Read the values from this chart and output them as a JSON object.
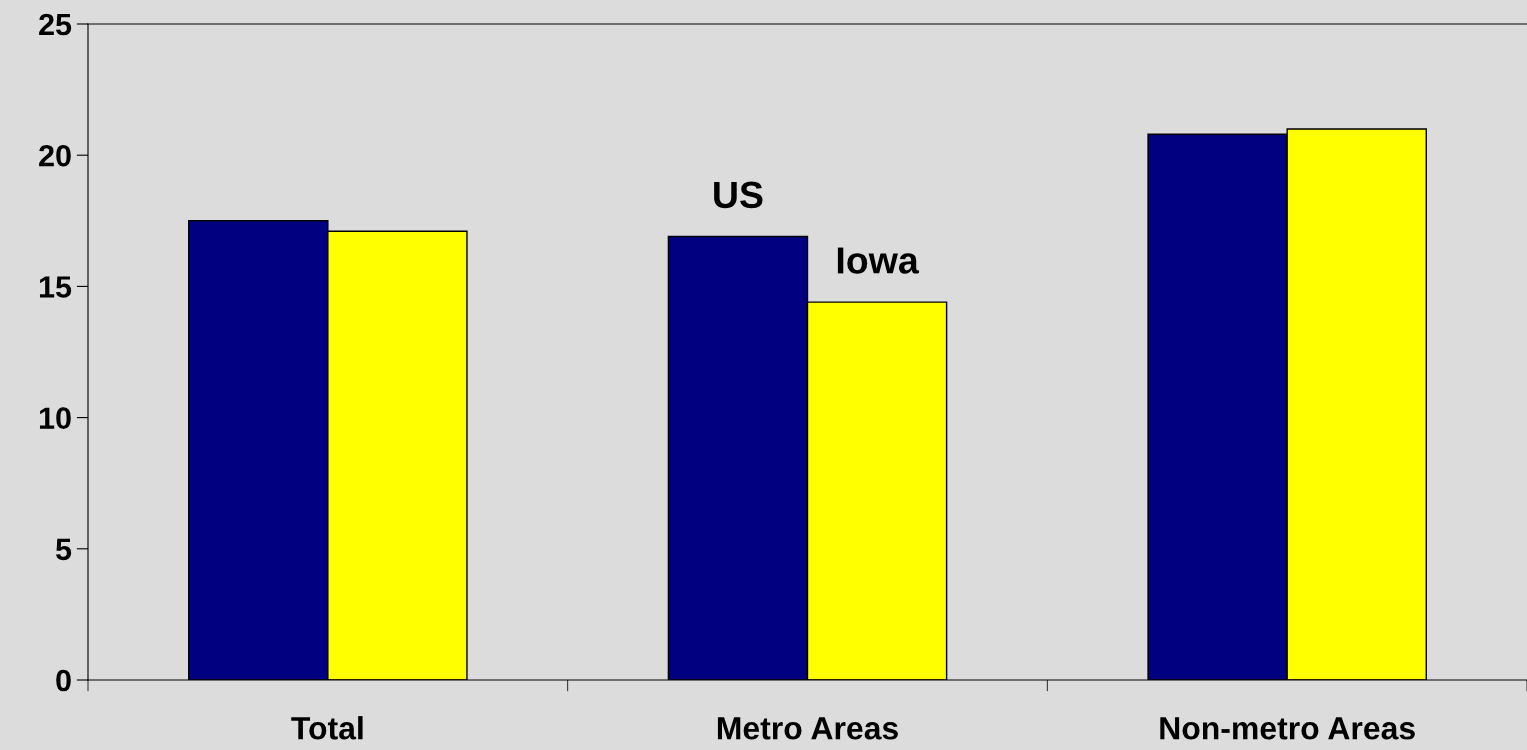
{
  "chart_data": {
    "type": "bar",
    "categories": [
      "Total",
      "Metro Areas",
      "Non-metro Areas"
    ],
    "series": [
      {
        "name": "US",
        "color": "#000080",
        "values": [
          17.5,
          16.9,
          20.8
        ]
      },
      {
        "name": "Iowa",
        "color": "#ffff00",
        "values": [
          17.1,
          14.4,
          21.0
        ]
      }
    ],
    "ylim": [
      0,
      25
    ],
    "yticks": [
      0,
      5,
      10,
      15,
      20,
      25
    ],
    "grid": false,
    "legend": false
  }
}
